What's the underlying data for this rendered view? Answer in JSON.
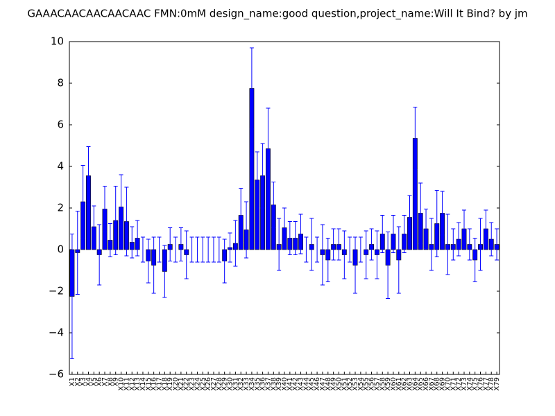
{
  "chart_data": {
    "type": "bar",
    "title": "GAAACAACAACAACAAC  FMN:0mM  design_name:good question,project_name:Will It Bind? by jm",
    "categories": [
      "X1",
      "X2",
      "X3",
      "X4",
      "X5",
      "X6",
      "X7",
      "X8",
      "X9",
      "X10",
      "X11",
      "X12",
      "X13",
      "X14",
      "X15",
      "X16",
      "X17",
      "X18",
      "X19",
      "X20",
      "X21",
      "X22",
      "X23",
      "X24",
      "X25",
      "X26",
      "X27",
      "X28",
      "X29",
      "X30",
      "X31",
      "X32",
      "X33",
      "X34",
      "X35",
      "X36",
      "X37",
      "X38",
      "X39",
      "X40",
      "X41",
      "X42",
      "X43",
      "X44",
      "X45",
      "X46",
      "X47",
      "X48",
      "X49",
      "X50",
      "X51",
      "X52",
      "X53",
      "X54",
      "X55",
      "X56",
      "X57",
      "X58",
      "X59",
      "X60",
      "X61",
      "X62",
      "X63",
      "X64",
      "X65",
      "X66",
      "X67",
      "X68",
      "X69",
      "X70",
      "X71",
      "X72",
      "X73",
      "X74",
      "X75",
      "X76",
      "X77",
      "X78",
      "X79"
    ],
    "values": [
      -2.25,
      -0.15,
      2.3,
      3.55,
      1.1,
      -0.25,
      1.95,
      0.45,
      1.4,
      2.05,
      1.35,
      0.35,
      0.55,
      0,
      -0.55,
      -0.75,
      0,
      -1.05,
      0.25,
      0,
      0.25,
      -0.25,
      0,
      0,
      0,
      0,
      0,
      0,
      -0.55,
      0.1,
      0.3,
      1.65,
      0.95,
      7.75,
      3.35,
      3.55,
      4.85,
      2.15,
      0.25,
      1.05,
      0.55,
      0.55,
      0.75,
      0,
      0.25,
      0,
      -0.25,
      -0.5,
      0.25,
      0.25,
      -0.25,
      0,
      -0.75,
      0,
      -0.25,
      0.25,
      -0.25,
      0.75,
      -0.75,
      0.75,
      -0.5,
      0.75,
      1.55,
      5.35,
      1.75,
      1.0,
      0.25,
      1.25,
      1.75,
      0.25,
      0.25,
      0.5,
      1.0,
      0.25,
      -0.5,
      0.25,
      1.0,
      0.5,
      0.25
    ],
    "errors": [
      3.0,
      2.0,
      1.75,
      1.4,
      1.0,
      1.45,
      1.1,
      0.8,
      1.65,
      1.55,
      1.65,
      0.75,
      0.85,
      0.6,
      1.05,
      1.35,
      0.6,
      1.25,
      0.8,
      0.6,
      0.8,
      1.15,
      0.6,
      0.6,
      0.6,
      0.6,
      0.6,
      0.6,
      1.05,
      0.7,
      1.1,
      1.3,
      1.35,
      1.95,
      1.35,
      1.55,
      1.95,
      1.1,
      1.25,
      0.95,
      0.8,
      0.8,
      0.95,
      0.6,
      1.25,
      0.6,
      1.45,
      1.05,
      0.75,
      0.75,
      1.15,
      0.6,
      1.35,
      0.6,
      1.15,
      0.75,
      1.15,
      0.9,
      1.6,
      0.9,
      1.6,
      0.9,
      1.05,
      1.5,
      1.45,
      0.95,
      1.25,
      1.6,
      1.05,
      1.45,
      0.75,
      0.8,
      0.9,
      0.75,
      1.05,
      1.25,
      0.9,
      0.8,
      0.75
    ],
    "color": "#0000ff",
    "ylim": [
      -6,
      10
    ],
    "yticks": [
      {
        "value": -6,
        "label": "−6"
      },
      {
        "value": -4,
        "label": "−4"
      },
      {
        "value": -2,
        "label": "−2"
      },
      0,
      2,
      4,
      6,
      8,
      10
    ],
    "grid": false
  }
}
